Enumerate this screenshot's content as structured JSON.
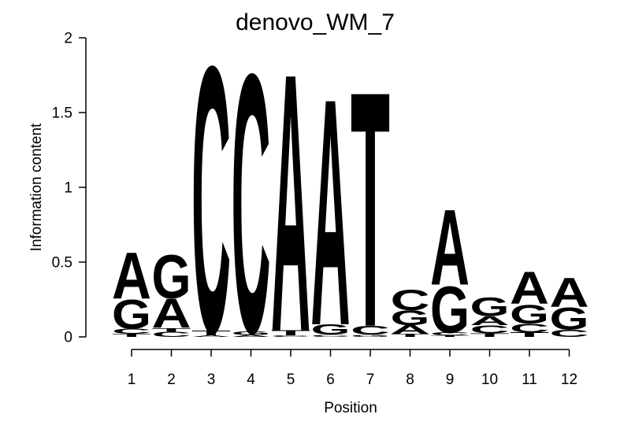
{
  "chart_data": {
    "type": "sequence_logo",
    "title": "denovo_WM_7",
    "xlabel": "Position",
    "ylabel": "Information content",
    "ylim": [
      0,
      2
    ],
    "yticks": [
      0,
      0.5,
      1,
      1.5,
      2
    ],
    "ytick_labels": [
      "0",
      "0.5",
      "1",
      "1.5",
      "2"
    ],
    "positions": [
      "1",
      "2",
      "3",
      "4",
      "5",
      "6",
      "7",
      "8",
      "9",
      "10",
      "11",
      "12"
    ],
    "grid": false,
    "legend": "none",
    "letter_colors": {
      "A": "#00d300",
      "C": "#0000e8",
      "G": "#ffa500",
      "T": "#ff0000"
    },
    "stacks": [
      {
        "position": 1,
        "letters": [
          {
            "base": "T",
            "ic": 0.02
          },
          {
            "base": "C",
            "ic": 0.035
          },
          {
            "base": "G",
            "ic": 0.2
          },
          {
            "base": "A",
            "ic": 0.32
          }
        ]
      },
      {
        "position": 2,
        "letters": [
          {
            "base": "C",
            "ic": 0.035
          },
          {
            "base": "T",
            "ic": 0.025
          },
          {
            "base": "A",
            "ic": 0.2
          },
          {
            "base": "G",
            "ic": 0.3
          }
        ]
      },
      {
        "position": 3,
        "letters": [
          {
            "base": "A",
            "ic": 0.01
          },
          {
            "base": "T",
            "ic": 0.03
          },
          {
            "base": "C",
            "ic": 1.83
          }
        ]
      },
      {
        "position": 4,
        "letters": [
          {
            "base": "A",
            "ic": 0.012
          },
          {
            "base": "G",
            "ic": 0.025
          },
          {
            "base": "C",
            "ic": 1.78
          }
        ]
      },
      {
        "position": 5,
        "letters": [
          {
            "base": "C",
            "ic": 0.01
          },
          {
            "base": "T",
            "ic": 0.035
          },
          {
            "base": "A",
            "ic": 1.775
          }
        ]
      },
      {
        "position": 6,
        "letters": [
          {
            "base": "C",
            "ic": 0.015
          },
          {
            "base": "G",
            "ic": 0.07
          },
          {
            "base": "A",
            "ic": 1.56
          }
        ]
      },
      {
        "position": 7,
        "letters": [
          {
            "base": "G",
            "ic": 0.015
          },
          {
            "base": "C",
            "ic": 0.06
          },
          {
            "base": "T",
            "ic": 1.62
          }
        ]
      },
      {
        "position": 8,
        "letters": [
          {
            "base": "T",
            "ic": 0.02
          },
          {
            "base": "A",
            "ic": 0.06
          },
          {
            "base": "G",
            "ic": 0.1
          },
          {
            "base": "C",
            "ic": 0.14
          }
        ]
      },
      {
        "position": 9,
        "letters": [
          {
            "base": "T",
            "ic": 0.01
          },
          {
            "base": "C",
            "ic": 0.02
          },
          {
            "base": "G",
            "ic": 0.32
          },
          {
            "base": "A",
            "ic": 0.52
          }
        ]
      },
      {
        "position": 10,
        "letters": [
          {
            "base": "T",
            "ic": 0.025
          },
          {
            "base": "C",
            "ic": 0.055
          },
          {
            "base": "A",
            "ic": 0.06
          },
          {
            "base": "G",
            "ic": 0.13
          }
        ]
      },
      {
        "position": 11,
        "letters": [
          {
            "base": "T",
            "ic": 0.03
          },
          {
            "base": "C",
            "ic": 0.06
          },
          {
            "base": "G",
            "ic": 0.13
          },
          {
            "base": "A",
            "ic": 0.22
          }
        ]
      },
      {
        "position": 12,
        "letters": [
          {
            "base": "C",
            "ic": 0.05
          },
          {
            "base": "G",
            "ic": 0.15
          },
          {
            "base": "A",
            "ic": 0.2
          }
        ]
      }
    ]
  }
}
